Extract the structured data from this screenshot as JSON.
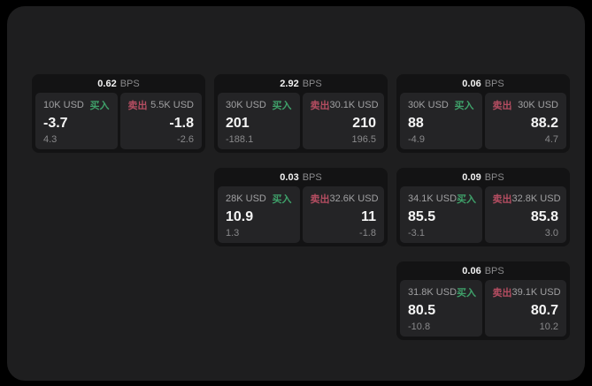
{
  "ui": {
    "bps_unit": "BPS",
    "buy_label": "买入",
    "sell_label": "卖出"
  },
  "colors": {
    "background": "#000000",
    "panel": "#1e1e1f",
    "card": "#131314",
    "tile": "#242426",
    "buy_accent": "#3fa16a",
    "sell_accent": "#b44d61"
  },
  "cards": [
    {
      "bps": "0.62",
      "row": 0,
      "col": 0,
      "buy": {
        "amount": "10K USD",
        "value": "-3.7",
        "delta": "4.3"
      },
      "sell": {
        "amount": "5.5K USD",
        "value": "-1.8",
        "delta": "-2.6"
      }
    },
    {
      "bps": "2.92",
      "row": 0,
      "col": 1,
      "buy": {
        "amount": "30K USD",
        "value": "201",
        "delta": "-188.1"
      },
      "sell": {
        "amount": "30.1K USD",
        "value": "210",
        "delta": "196.5"
      }
    },
    {
      "bps": "0.06",
      "row": 0,
      "col": 2,
      "buy": {
        "amount": "30K USD",
        "value": "88",
        "delta": "-4.9"
      },
      "sell": {
        "amount": "30K USD",
        "value": "88.2",
        "delta": "4.7"
      }
    },
    {
      "bps": "0.03",
      "row": 1,
      "col": 1,
      "buy": {
        "amount": "28K USD",
        "value": "10.9",
        "delta": "1.3"
      },
      "sell": {
        "amount": "32.6K USD",
        "value": "11",
        "delta": "-1.8"
      }
    },
    {
      "bps": "0.09",
      "row": 1,
      "col": 2,
      "buy": {
        "amount": "34.1K USD",
        "value": "85.5",
        "delta": "-3.1"
      },
      "sell": {
        "amount": "32.8K USD",
        "value": "85.8",
        "delta": "3.0"
      }
    },
    {
      "bps": "0.06",
      "row": 2,
      "col": 2,
      "buy": {
        "amount": "31.8K USD",
        "value": "80.5",
        "delta": "-10.8"
      },
      "sell": {
        "amount": "39.1K USD",
        "value": "80.7",
        "delta": "10.2"
      }
    }
  ]
}
